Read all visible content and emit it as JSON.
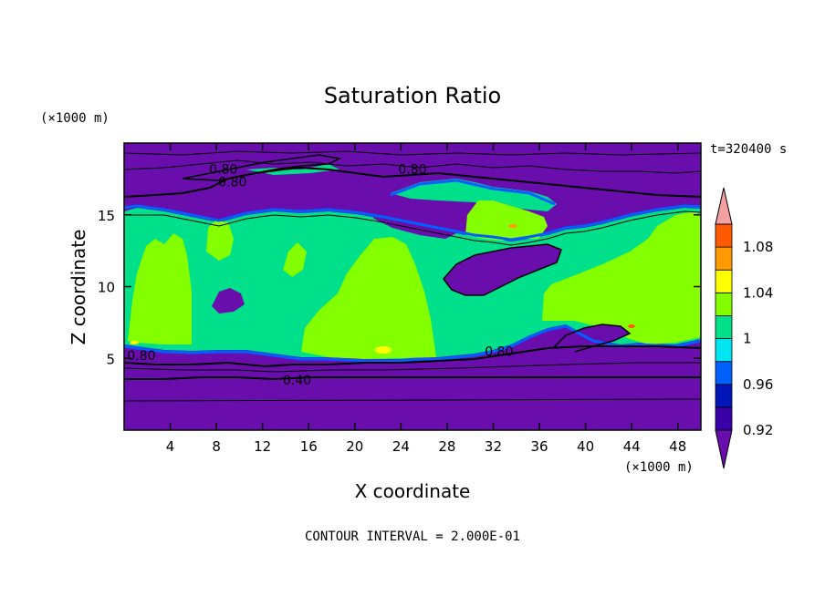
{
  "chart_data": {
    "type": "heatmap",
    "title": "Saturation Ratio",
    "xlabel": "X coordinate",
    "ylabel": "Z coordinate",
    "x_unit_label": "(×1000 m)",
    "y_unit_label": "(×1000 m)",
    "time_label": "t=320400 s",
    "footer": "CONTOUR INTERVAL = 2.000E-01",
    "xlim": [
      0,
      50
    ],
    "ylim": [
      0,
      20
    ],
    "x_ticks": [
      4,
      8,
      12,
      16,
      20,
      24,
      28,
      32,
      36,
      40,
      44,
      48
    ],
    "y_ticks": [
      5,
      10,
      15
    ],
    "colorbar": {
      "levels": [
        0.92,
        0.94,
        0.96,
        0.98,
        1.0,
        1.02,
        1.04,
        1.06,
        1.08,
        1.1
      ],
      "tick_labels": [
        "0.92",
        "0.96",
        "1",
        "1.04",
        "1.08"
      ],
      "colors": [
        "#6a0dad",
        "#3a00a8",
        "#0016b8",
        "#0060ff",
        "#00e6f0",
        "#00e08a",
        "#84ff00",
        "#ffff00",
        "#ff9a00",
        "#ff5a00",
        "#ff1e1e",
        "#f4a0a0"
      ]
    },
    "contour_labels": [
      {
        "value": "0.80",
        "x": 8.6,
        "z": 18.2
      },
      {
        "value": "0.80",
        "x": 9.4,
        "z": 17.3
      },
      {
        "value": "0.80",
        "x": 25.0,
        "z": 18.2
      },
      {
        "value": "0.80",
        "x": 1.5,
        "z": 5.2
      },
      {
        "value": "0.80",
        "x": 32.5,
        "z": 5.5
      },
      {
        "value": "0.40",
        "x": 15.0,
        "z": 3.5
      }
    ],
    "regions": {
      "upper_dry_layer_z": [
        15.5,
        20
      ],
      "near_saturated_layer_z": [
        5,
        15.5
      ],
      "lower_dry_layer_z": [
        0,
        5
      ],
      "supersaturated_plumes_x": [
        [
          0.5,
          5.5
        ],
        [
          7,
          10.5
        ],
        [
          15,
          27
        ],
        [
          29.5,
          38
        ],
        [
          37.5,
          50
        ]
      ]
    }
  }
}
